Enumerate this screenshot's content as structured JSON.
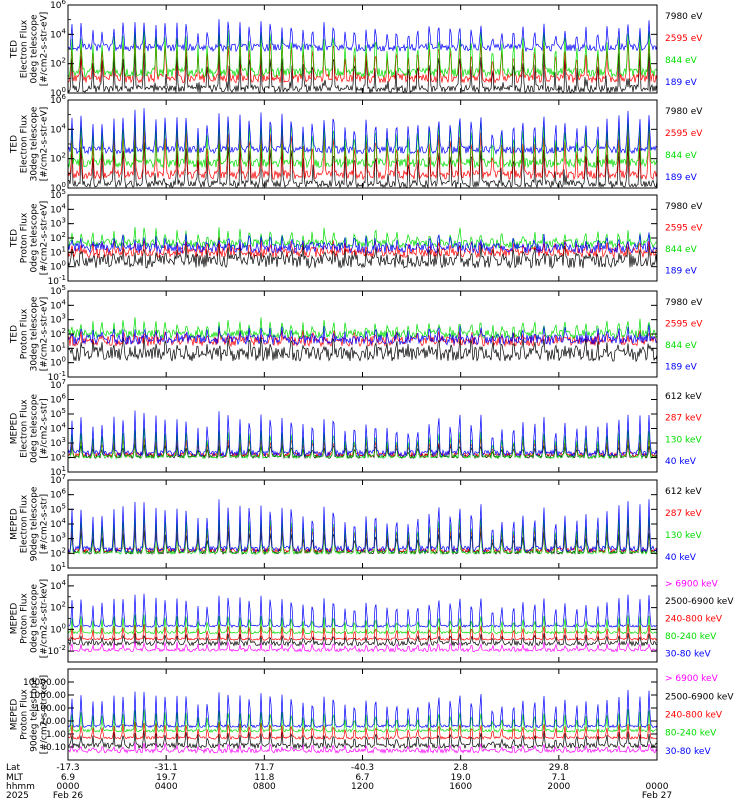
{
  "chart_data": {
    "type": "line",
    "x_axis": {
      "rows": [
        {
          "label": "Lat",
          "values": [
            "-17.3",
            "-31.1",
            "71.7",
            "-40.3",
            "2.8",
            "29.8",
            ""
          ]
        },
        {
          "label": "MLT",
          "values": [
            "6.9",
            "19.7",
            "11.8",
            "6.7",
            "19.0",
            "7.1",
            ""
          ]
        },
        {
          "label": "hhmm",
          "values": [
            "0000",
            "0400",
            "0800",
            "1200",
            "1600",
            "2000",
            "0000"
          ]
        },
        {
          "label": "2025",
          "values": [
            "Feb 26",
            "",
            "",
            "",
            "",
            "",
            "Feb 27"
          ]
        }
      ],
      "hours": [
        0,
        4,
        8,
        12,
        16,
        20,
        24
      ]
    },
    "panels": [
      {
        "ylabel": [
          "TED",
          "Electron Flux",
          "0deg telescope",
          "[#/cm2-s-str-eV]"
        ],
        "scale": "log",
        "ylim": [
          1,
          1000000
        ],
        "tick_exps": [
          0,
          2,
          4,
          6
        ],
        "tick_style": "pow",
        "series": [
          {
            "name": "7980 eV",
            "color": "#000000",
            "base": 0.3,
            "peak": 3.0,
            "noise": 0.25,
            "floor": 0.5
          },
          {
            "name": "2595 eV",
            "color": "#ff0000",
            "base": 1.0,
            "peak": 3.8,
            "noise": 0.3
          },
          {
            "name": "844 eV",
            "color": "#00dd00",
            "base": 1.4,
            "peak": 4.4,
            "noise": 0.3
          },
          {
            "name": "189 eV",
            "color": "#0000ff",
            "base": 3.1,
            "peak": 4.9,
            "noise": 0.25
          }
        ]
      },
      {
        "ylabel": [
          "TED",
          "Electron Flux",
          "30deg telescope",
          "[#/cm2-s-str-eV]"
        ],
        "scale": "log",
        "ylim": [
          1,
          1000000
        ],
        "tick_exps": [
          0,
          2,
          4,
          6
        ],
        "tick_style": "pow",
        "series": [
          {
            "name": "7980 eV",
            "color": "#000000",
            "base": 0.3,
            "peak": 3.2,
            "noise": 0.25,
            "floor": 0.5
          },
          {
            "name": "2595 eV",
            "color": "#ff0000",
            "base": 0.9,
            "peak": 4.2,
            "noise": 0.3
          },
          {
            "name": "844 eV",
            "color": "#00dd00",
            "base": 1.7,
            "peak": 4.9,
            "noise": 0.3
          },
          {
            "name": "189 eV",
            "color": "#0000ff",
            "base": 2.6,
            "peak": 5.3,
            "noise": 0.25
          }
        ]
      },
      {
        "ylabel": [
          "TED",
          "Proton Flux",
          "0deg telescope",
          "[#/cm2-s-str-eV]"
        ],
        "scale": "log",
        "ylim": [
          0.1,
          100000
        ],
        "tick_exps": [
          -1,
          0,
          1,
          2,
          3,
          4,
          5
        ],
        "tick_style": "pow",
        "series": [
          {
            "name": "7980 eV",
            "color": "#000000",
            "base": 0.4,
            "peak": 1.4,
            "noise": 0.5
          },
          {
            "name": "2595 eV",
            "color": "#ff0000",
            "base": 1.0,
            "peak": 1.8,
            "noise": 0.35
          },
          {
            "name": "844 eV",
            "color": "#00dd00",
            "base": 1.6,
            "peak": 2.6,
            "noise": 0.3
          },
          {
            "name": "189 eV",
            "color": "#0000ff",
            "base": 1.3,
            "peak": 2.1,
            "noise": 0.35
          }
        ]
      },
      {
        "ylabel": [
          "TED",
          "Proton Flux",
          "30deg telescope",
          "[#/cm2-s-str-eV]"
        ],
        "scale": "log",
        "ylim": [
          0.1,
          100000
        ],
        "tick_exps": [
          -1,
          0,
          1,
          2,
          3,
          4,
          5
        ],
        "tick_style": "pow",
        "series": [
          {
            "name": "7980 eV",
            "color": "#000000",
            "base": 0.6,
            "peak": 1.5,
            "noise": 0.5
          },
          {
            "name": "2595 eV",
            "color": "#ff0000",
            "base": 1.5,
            "peak": 2.2,
            "noise": 0.35
          },
          {
            "name": "844 eV",
            "color": "#00dd00",
            "base": 2.0,
            "peak": 3.0,
            "noise": 0.3
          },
          {
            "name": "189 eV",
            "color": "#0000ff",
            "base": 1.6,
            "peak": 2.4,
            "noise": 0.35
          }
        ]
      },
      {
        "ylabel": [
          "MEPED",
          "Electron Flux",
          "0deg telescope",
          "[#/cm2-s-str]"
        ],
        "scale": "log",
        "ylim": [
          10,
          10000000
        ],
        "tick_exps": [
          1,
          2,
          3,
          4,
          5,
          6,
          7
        ],
        "tick_style": "pow",
        "series": [
          {
            "name": "612 keV",
            "color": "#000000",
            "base": 2.1,
            "peak": 2.9,
            "noise": 0.15
          },
          {
            "name": "287 keV",
            "color": "#ff0000",
            "base": 2.2,
            "peak": 3.4,
            "noise": 0.15
          },
          {
            "name": "130 keV",
            "color": "#00dd00",
            "base": 2.05,
            "peak": 4.0,
            "noise": 0.1
          },
          {
            "name": "40 keV",
            "color": "#0000ff",
            "base": 2.3,
            "peak": 5.2,
            "noise": 0.2
          }
        ]
      },
      {
        "ylabel": [
          "MEPED",
          "Electron Flux",
          "90deg telescope",
          "[#/cm2-s-str]"
        ],
        "scale": "log",
        "ylim": [
          10,
          10000000
        ],
        "tick_exps": [
          1,
          2,
          3,
          4,
          5,
          6,
          7
        ],
        "tick_style": "pow",
        "series": [
          {
            "name": "612 keV",
            "color": "#000000",
            "base": 2.1,
            "peak": 3.6,
            "noise": 0.15
          },
          {
            "name": "287 keV",
            "color": "#ff0000",
            "base": 2.2,
            "peak": 4.3,
            "noise": 0.15
          },
          {
            "name": "130 keV",
            "color": "#00dd00",
            "base": 2.05,
            "peak": 4.8,
            "noise": 0.1
          },
          {
            "name": "40 keV",
            "color": "#0000ff",
            "base": 2.3,
            "peak": 5.7,
            "noise": 0.2
          }
        ]
      },
      {
        "ylabel": [
          "MEPED",
          "Proton Flux",
          "0deg telescope",
          "[#/cm2-s-str-keV]"
        ],
        "scale": "log",
        "ylim": [
          0.001,
          100000
        ],
        "tick_exps": [
          -2,
          0,
          2,
          4
        ],
        "tick_style": "pow",
        "series": [
          {
            "name": "> 6900 keV",
            "color": "#ff00ff",
            "base": -1.9,
            "peak": -1.2,
            "noise": 0.15
          },
          {
            "name": "2500-6900 keV",
            "color": "#000000",
            "base": -1.3,
            "peak": -0.4,
            "noise": 0.2
          },
          {
            "name": "240-800 keV",
            "color": "#ff0000",
            "base": -0.9,
            "peak": 0.5,
            "noise": 0.1
          },
          {
            "name": "80-240 keV",
            "color": "#00dd00",
            "base": -0.3,
            "peak": 1.4,
            "noise": 0.1
          },
          {
            "name": "30-80 keV",
            "color": "#0000ff",
            "base": 0.3,
            "peak": 3.3,
            "noise": 0.1
          }
        ]
      },
      {
        "ylabel": [
          "MEPED",
          "Proton Flux",
          "90deg telescope",
          "[#/cm2-s-str-keV]"
        ],
        "scale": "log",
        "ylim": [
          0.01,
          100000
        ],
        "tick_exps": [
          -1,
          0,
          1,
          2,
          3,
          4
        ],
        "tick_style": "dec",
        "tick_labels": [
          "0.10",
          "1.00",
          "10.00",
          "100.00",
          "1000.00",
          "10000.00"
        ],
        "series": [
          {
            "name": "> 6900 keV",
            "color": "#ff00ff",
            "base": -1.3,
            "peak": -0.8,
            "noise": 0.15
          },
          {
            "name": "2500-6900 keV",
            "color": "#000000",
            "base": -0.9,
            "peak": 0.2,
            "noise": 0.2
          },
          {
            "name": "240-800 keV",
            "color": "#ff0000",
            "base": -0.3,
            "peak": 0.9,
            "noise": 0.1
          },
          {
            "name": "80-240 keV",
            "color": "#00dd00",
            "base": 0.25,
            "peak": 1.9,
            "noise": 0.1
          },
          {
            "name": "30-80 keV",
            "color": "#0000ff",
            "base": 0.6,
            "peak": 3.4,
            "noise": 0.1
          }
        ]
      }
    ],
    "passes_per_day": 28
  }
}
